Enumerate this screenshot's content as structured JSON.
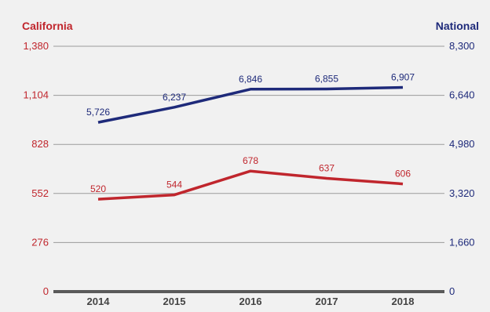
{
  "chart_data": {
    "type": "line",
    "categories": [
      "2014",
      "2015",
      "2016",
      "2017",
      "2018"
    ],
    "left_axis": {
      "title": "California",
      "range": [
        0,
        1380
      ],
      "ticks": [
        "0",
        "276",
        "552",
        "828",
        "1,104",
        "1,380"
      ],
      "tick_values": [
        0,
        276,
        552,
        828,
        1104,
        1380
      ]
    },
    "right_axis": {
      "title": "National",
      "range": [
        0,
        8300
      ],
      "ticks": [
        "0",
        "1,660",
        "3,320",
        "4,980",
        "6,640",
        "8,300"
      ],
      "tick_values": [
        0,
        1660,
        3320,
        4980,
        6640,
        8300
      ]
    },
    "series": [
      {
        "name": "California",
        "axis": "left",
        "color": "#c0262d",
        "values": [
          520,
          544,
          678,
          637,
          606
        ],
        "labels": [
          "520",
          "544",
          "678",
          "637",
          "606"
        ]
      },
      {
        "name": "National",
        "axis": "right",
        "color": "#1e2a7a",
        "values": [
          5726,
          6237,
          6846,
          6855,
          6907
        ],
        "labels": [
          "5,726",
          "6,237",
          "6,846",
          "6,855",
          "6,907"
        ]
      }
    ],
    "grid": true
  }
}
